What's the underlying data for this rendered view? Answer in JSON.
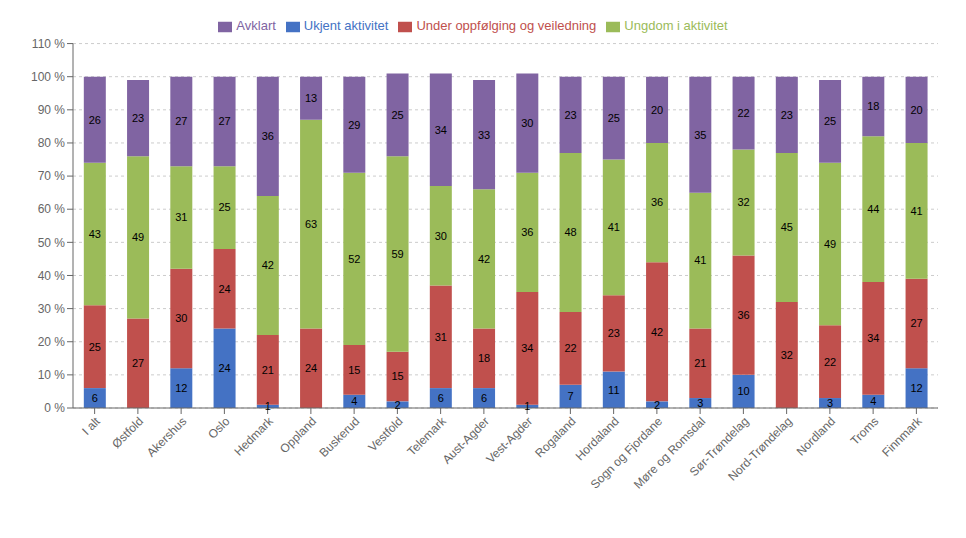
{
  "chart_data": {
    "type": "bar",
    "stacked": true,
    "data_labels": true,
    "grid": true,
    "legend": "top",
    "categories": [
      "I alt",
      "Østfold",
      "Akershus",
      "Oslo",
      "Hedmark",
      "Oppland",
      "Buskerud",
      "Vestfold",
      "Telemark",
      "Aust-Agder",
      "Vest-Agder",
      "Rogaland",
      "Hordaland",
      "Sogn og Fjordane",
      "Møre og Romsdal",
      "Sør-Trøndelag",
      "Nord-Trøndelag",
      "Nordland",
      "Troms",
      "Finnmark"
    ],
    "series": [
      {
        "name": "Ukjent aktivitet",
        "color": "#4472C4",
        "values": [
          6,
          0,
          12,
          24,
          1,
          0,
          4,
          2,
          6,
          6,
          1,
          7,
          11,
          2,
          3,
          10,
          0,
          3,
          4,
          12
        ]
      },
      {
        "name": "Under oppfølging og veiledning",
        "color": "#C0504D",
        "values": [
          25,
          27,
          30,
          24,
          21,
          24,
          15,
          15,
          31,
          18,
          34,
          22,
          23,
          42,
          21,
          36,
          32,
          22,
          34,
          27
        ]
      },
      {
        "name": "Ungdom i aktivitet",
        "color": "#9BBB59",
        "values": [
          43,
          49,
          31,
          25,
          42,
          63,
          52,
          59,
          30,
          42,
          36,
          48,
          41,
          36,
          41,
          32,
          45,
          49,
          44,
          41
        ]
      },
      {
        "name": "Avklart",
        "color": "#8064A2",
        "values": [
          26,
          23,
          27,
          27,
          36,
          13,
          29,
          25,
          34,
          33,
          30,
          23,
          25,
          20,
          35,
          22,
          23,
          25,
          18,
          20
        ]
      }
    ],
    "ylim": [
      0,
      110
    ],
    "yticks": [
      {
        "value": 0,
        "label": "0 %"
      },
      {
        "value": 10,
        "label": "10 %"
      },
      {
        "value": 20,
        "label": "20 %"
      },
      {
        "value": 30,
        "label": "30 %"
      },
      {
        "value": 40,
        "label": "40 %"
      },
      {
        "value": 50,
        "label": "50 %"
      },
      {
        "value": 60,
        "label": "60 %"
      },
      {
        "value": 70,
        "label": "70 %"
      },
      {
        "value": 80,
        "label": "80 %"
      },
      {
        "value": 90,
        "label": "90 %"
      },
      {
        "value": 100,
        "label": "100 %"
      },
      {
        "value": 110,
        "label": "110 %"
      }
    ]
  }
}
